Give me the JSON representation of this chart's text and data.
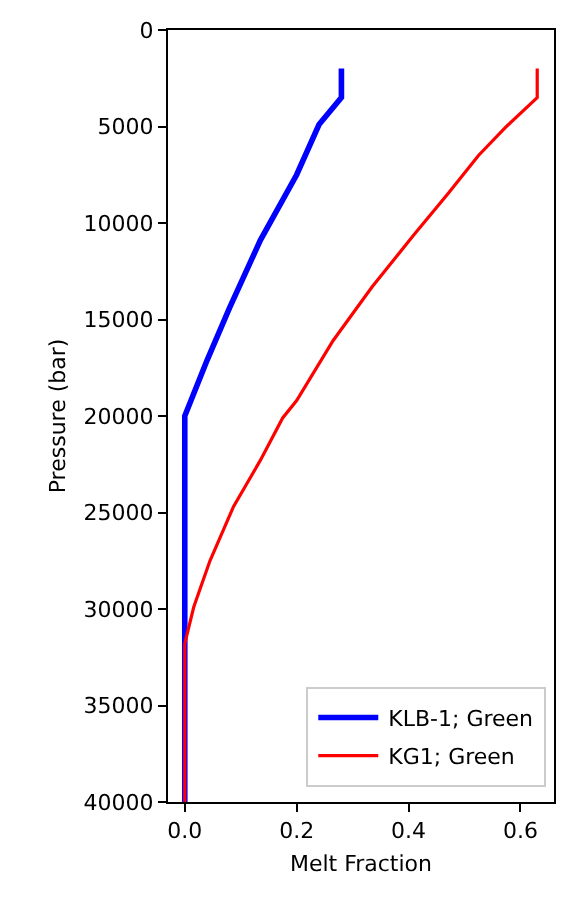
{
  "chart_data": {
    "type": "line",
    "xlabel": "Melt Fraction",
    "ylabel": "Pressure (bar)",
    "xlim": [
      -0.03,
      0.66
    ],
    "xticks": [
      {
        "value": 0,
        "label": "0.0"
      },
      {
        "value": 0.2,
        "label": "0.2"
      },
      {
        "value": 0.4,
        "label": "0.4"
      },
      {
        "value": 0.6,
        "label": "0.6"
      }
    ],
    "ylim": [
      40000,
      0
    ],
    "yticks": [
      0,
      5000,
      10000,
      15000,
      20000,
      25000,
      30000,
      35000,
      40000
    ],
    "grid": false,
    "legend": "bottom right",
    "marker": "none",
    "line_style": "solid",
    "series": [
      {
        "name": "KLB-1; Green",
        "color": "#0000ff",
        "x": [
          0.28,
          0.28,
          0.24,
          0.2,
          0.135,
          0.08,
          0.04,
          0,
          0
        ],
        "values": [
          2000,
          3500,
          4900,
          7500,
          10900,
          14400,
          17100,
          20000,
          40000
        ]
      },
      {
        "name": "KG1; Green",
        "color": "#ff0000",
        "x": [
          0.63,
          0.63,
          0.575,
          0.525,
          0.47,
          0.41,
          0.335,
          0.265,
          0.2,
          0.175,
          0.135,
          0.087,
          0.045,
          0.016,
          0,
          0
        ],
        "values": [
          2000,
          3500,
          5000,
          6500,
          8500,
          10600,
          13300,
          16100,
          19200,
          20100,
          22300,
          24700,
          27500,
          29900,
          31800,
          40000
        ]
      }
    ]
  }
}
